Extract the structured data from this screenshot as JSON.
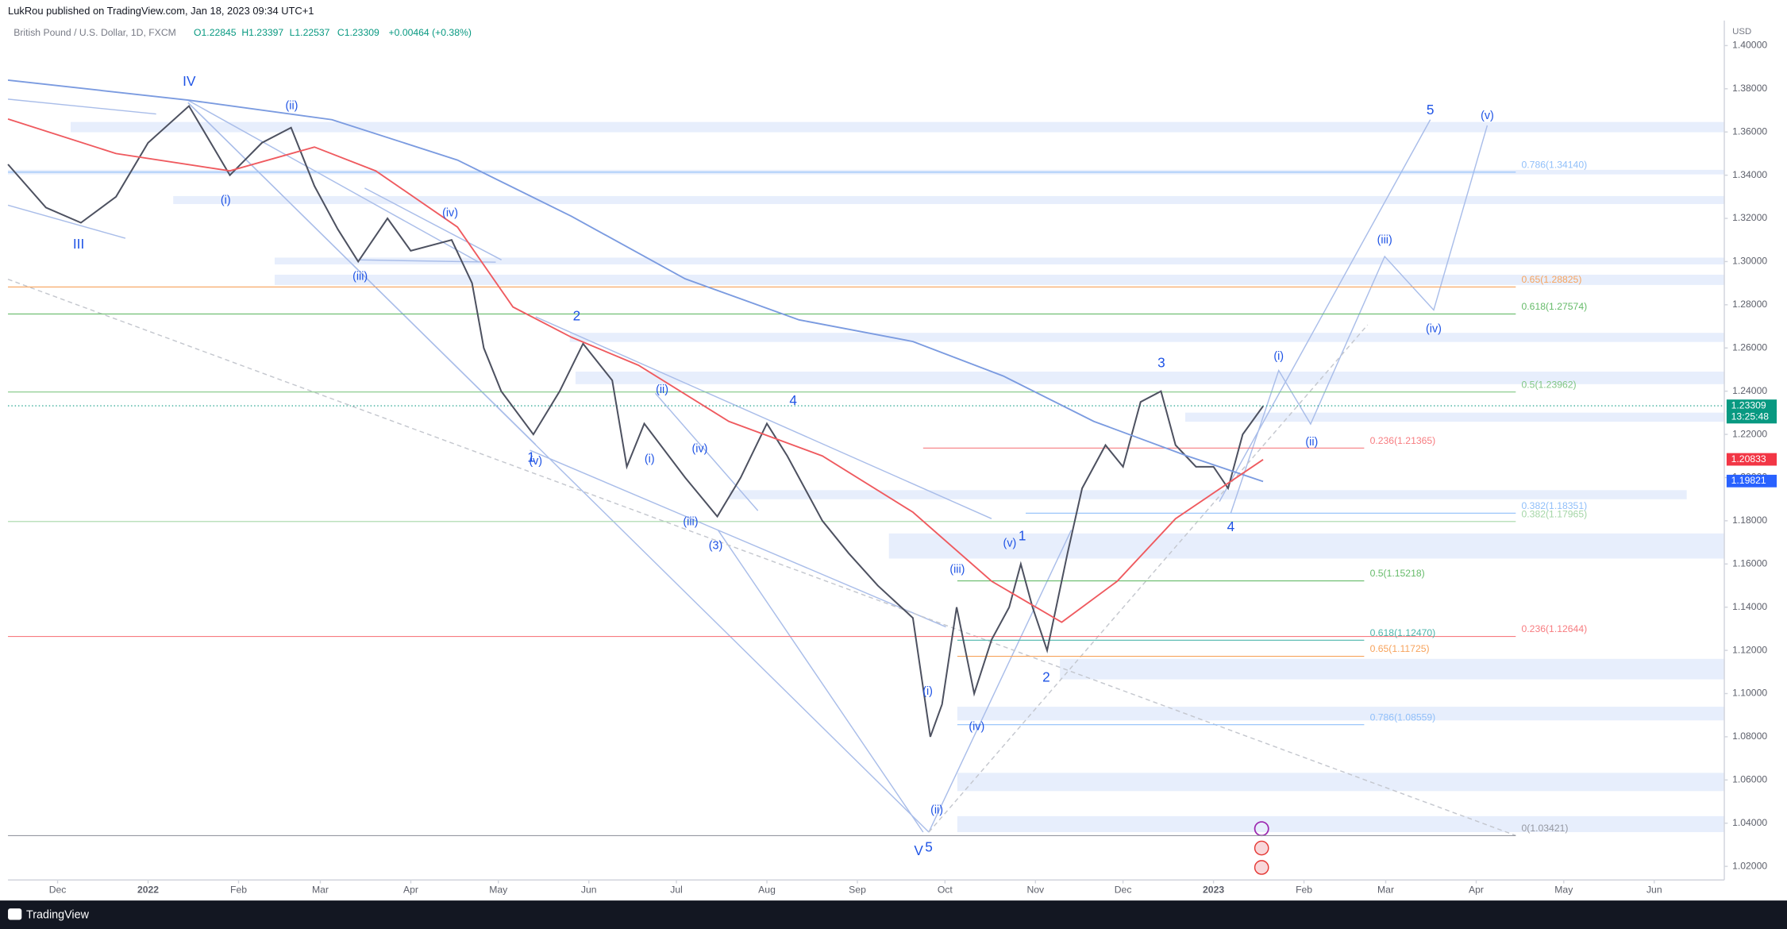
{
  "header": {
    "publisher": "LukRou published on TradingView.com, Jan 18, 2023 09:34 UTC+1",
    "footer": "TradingView"
  },
  "chart_data": {
    "type": "line",
    "symbol": "British Pound / U.S. Dollar, 1D, FXCM",
    "ohlc": [
      "O1.22845",
      "H1.23397",
      "L1.22537",
      "C1.23309",
      "+0.00464 (+0.38%)"
    ],
    "currency": "USD",
    "xlim": [
      13,
      601
    ],
    "ylim": [
      1.0137,
      1.4116
    ],
    "grid": false,
    "xticks": [
      {
        "value": 30,
        "label": "Dec"
      },
      {
        "value": 61,
        "label": "2022"
      },
      {
        "value": 92,
        "label": "Feb"
      },
      {
        "value": 120,
        "label": "Mar"
      },
      {
        "value": 151,
        "label": "Apr"
      },
      {
        "value": 181,
        "label": "May"
      },
      {
        "value": 212,
        "label": "Jun"
      },
      {
        "value": 242,
        "label": "Jul"
      },
      {
        "value": 273,
        "label": "Aug"
      },
      {
        "value": 304,
        "label": "Sep"
      },
      {
        "value": 334,
        "label": "Oct"
      },
      {
        "value": 365,
        "label": "Nov"
      },
      {
        "value": 395,
        "label": "Dec"
      },
      {
        "value": 426,
        "label": "2023"
      },
      {
        "value": 457,
        "label": "Feb"
      },
      {
        "value": 485,
        "label": "Mar"
      },
      {
        "value": 516,
        "label": "Apr"
      },
      {
        "value": 546,
        "label": "May"
      },
      {
        "value": 577,
        "label": "Jun"
      }
    ],
    "yticks": [
      {
        "value": 1.02,
        "label": "1.02000"
      },
      {
        "value": 1.04,
        "label": "1.04000"
      },
      {
        "value": 1.06,
        "label": "1.06000"
      },
      {
        "value": 1.08,
        "label": "1.08000"
      },
      {
        "value": 1.1,
        "label": "1.10000"
      },
      {
        "value": 1.12,
        "label": "1.12000"
      },
      {
        "value": 1.14,
        "label": "1.14000"
      },
      {
        "value": 1.16,
        "label": "1.16000"
      },
      {
        "value": 1.18,
        "label": "1.18000"
      },
      {
        "value": 1.2,
        "label": "1.20000"
      },
      {
        "value": 1.22,
        "label": "1.22000"
      },
      {
        "value": 1.24,
        "label": "1.24000"
      },
      {
        "value": 1.26,
        "label": "1.26000"
      },
      {
        "value": 1.28,
        "label": "1.28000"
      },
      {
        "value": 1.3,
        "label": "1.30000"
      },
      {
        "value": 1.32,
        "label": "1.32000"
      },
      {
        "value": 1.34,
        "label": "1.34000"
      },
      {
        "value": 1.36,
        "label": "1.36000"
      },
      {
        "value": 1.38,
        "label": "1.38000"
      },
      {
        "value": 1.4,
        "label": "1.40000"
      }
    ],
    "series": [
      {
        "color": "#4d5160",
        "x": [
          13,
          26,
          38,
          50,
          61,
          75,
          89,
          100,
          110,
          118,
          126,
          133,
          143,
          151,
          165,
          172,
          176,
          182,
          193,
          202,
          210,
          220,
          225,
          231,
          245,
          256,
          264,
          273,
          280,
          292,
          301,
          311,
          323,
          329,
          333,
          338,
          344,
          350,
          356,
          360,
          364,
          369,
          376,
          381,
          389,
          395,
          401,
          408,
          413,
          420,
          426,
          431,
          436,
          443
        ],
        "values": [
          1.345,
          1.325,
          1.318,
          1.33,
          1.355,
          1.372,
          1.34,
          1.355,
          1.362,
          1.335,
          1.315,
          1.3,
          1.32,
          1.305,
          1.31,
          1.29,
          1.26,
          1.24,
          1.22,
          1.24,
          1.262,
          1.245,
          1.205,
          1.225,
          1.2,
          1.182,
          1.2,
          1.225,
          1.21,
          1.18,
          1.165,
          1.15,
          1.135,
          1.08,
          1.095,
          1.14,
          1.1,
          1.125,
          1.14,
          1.16,
          1.14,
          1.12,
          1.165,
          1.195,
          1.215,
          1.205,
          1.235,
          1.24,
          1.215,
          1.205,
          1.205,
          1.195,
          1.22,
          1.23309
        ]
      },
      {
        "color": "#7b9be0",
        "x": [
          13,
          75,
          124,
          167,
          206,
          245,
          284,
          323,
          354,
          385,
          417,
          443
        ],
        "values": [
          1.384,
          1.3747,
          1.3657,
          1.347,
          1.321,
          1.292,
          1.273,
          1.263,
          1.247,
          1.226,
          1.21,
          1.19821
        ]
      },
      {
        "color": "#ef5a5f",
        "x": [
          13,
          50,
          89,
          118,
          139,
          167,
          186,
          206,
          229,
          260,
          292,
          323,
          350,
          374,
          393,
          413,
          443
        ],
        "values": [
          1.366,
          1.35,
          1.342,
          1.353,
          1.342,
          1.316,
          1.279,
          1.265,
          1.252,
          1.226,
          1.21,
          1.184,
          1.152,
          1.133,
          1.152,
          1.181,
          1.20833
        ]
      }
    ],
    "fib_levels": [
      {
        "label": "0.786(1.34140)",
        "value": 1.3414,
        "color": "#90bff9"
      },
      {
        "label": "0.65(1.28825)",
        "value": 1.28825,
        "color": "#f7a35c"
      },
      {
        "label": "0.618(1.27574)",
        "value": 1.27574,
        "color": "#66bb6a"
      },
      {
        "label": "0.5(1.23962)",
        "value": 1.23962,
        "color": "#81c784"
      },
      {
        "label": "0.236(1.21365)",
        "value": 1.21365,
        "color": "#f77c80"
      },
      {
        "label": "0.382(1.18351)",
        "value": 1.18351,
        "color": "#90bff9"
      },
      {
        "label": "0.382(1.17965)",
        "value": 1.17965,
        "color": "#a5d6a7"
      },
      {
        "label": "0.5(1.15218)",
        "value": 1.15218,
        "color": "#66bb6a"
      },
      {
        "label": "0.236(1.12644)",
        "value": 1.12644,
        "color": "#f77c80"
      },
      {
        "label": "0.618(1.12470)",
        "value": 1.1247,
        "color": "#4db6ac"
      },
      {
        "label": "0.65(1.11725)",
        "value": 1.11725,
        "color": "#f7a35c"
      },
      {
        "label": "0.786(1.08559)",
        "value": 1.08559,
        "color": "#90bff9"
      },
      {
        "label": "0(1.03421)",
        "value": 1.03421,
        "color": "#9598a1"
      }
    ],
    "price_tags": [
      {
        "label": "1.23309",
        "color": "#089981"
      },
      {
        "label": "13:25:48",
        "color": "#089981"
      },
      {
        "label": "1.20833",
        "color": "#f23645"
      },
      {
        "label": "1.19821",
        "color": "#2962ff"
      }
    ],
    "annotations": [
      "IV",
      "(ii)",
      "(i)",
      "III",
      "(iv)",
      "(iii)",
      "2",
      "(ii)",
      "4",
      "1",
      "(v)",
      "(i)",
      "(iv)",
      "(iii)",
      "(3)",
      "(v)",
      "1",
      "(iii)",
      "(i)",
      "(iv)",
      "(ii)",
      "V",
      "5",
      "2",
      "3",
      "4",
      "(i)",
      "(ii)",
      "(iii)",
      "(iv)",
      "5",
      "(v)"
    ]
  }
}
